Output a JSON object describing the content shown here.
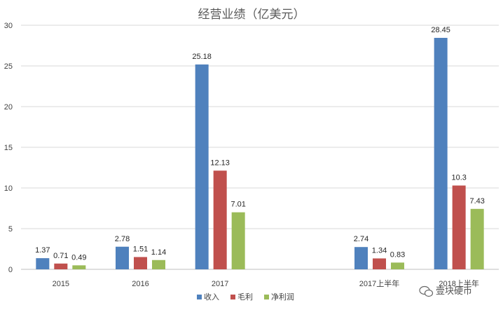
{
  "chart_data": {
    "type": "bar",
    "title": "经营业绩（亿美元）",
    "categories": [
      "2015",
      "2016",
      "2017",
      "",
      "2017上半年",
      "2018上半年"
    ],
    "series": [
      {
        "name": "收入",
        "color": "#4F81BD",
        "values": [
          1.37,
          2.78,
          25.18,
          null,
          2.74,
          28.45
        ]
      },
      {
        "name": "毛利",
        "color": "#C0504D",
        "values": [
          0.71,
          1.51,
          12.13,
          null,
          1.34,
          10.3
        ]
      },
      {
        "name": "净利润",
        "color": "#9BBB59",
        "values": [
          0.49,
          1.14,
          7.01,
          null,
          0.83,
          7.43
        ]
      }
    ],
    "ylim": [
      0,
      30
    ],
    "yticks": [
      0,
      5,
      10,
      15,
      20,
      25,
      30
    ],
    "grid": true,
    "legend": "bottom"
  },
  "watermark": {
    "text": "壹块硬币",
    "icon": "wechat-icon"
  }
}
